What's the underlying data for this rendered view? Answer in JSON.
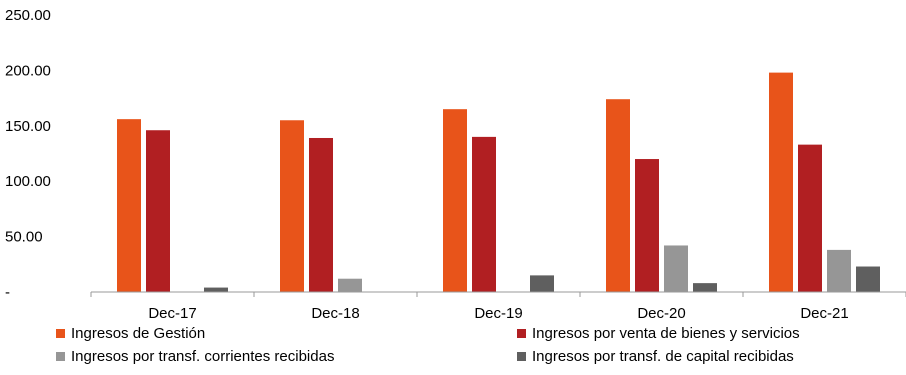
{
  "chart_data": {
    "type": "bar",
    "categories": [
      "Dec-17",
      "Dec-18",
      "Dec-19",
      "Dec-20",
      "Dec-21"
    ],
    "series": [
      {
        "name": "Ingresos de Gestión",
        "color": "#e8541a",
        "values": [
          156,
          155,
          165,
          174,
          198
        ]
      },
      {
        "name": "Ingresos por venta de bienes y servicios",
        "color": "#b11f22",
        "values": [
          146,
          139,
          140,
          120,
          133
        ]
      },
      {
        "name": "Ingresos por transf. corrientes recibidas",
        "color": "#969696",
        "values": [
          0,
          12,
          0,
          42,
          38
        ]
      },
      {
        "name": "Ingresos por transf. de capital recibidas",
        "color": "#5f5f5f",
        "values": [
          4,
          0,
          15,
          8,
          23
        ]
      }
    ],
    "y_ticks": [
      {
        "value": 0,
        "label": "-"
      },
      {
        "value": 50,
        "label": "50.00"
      },
      {
        "value": 100,
        "label": "100.00"
      },
      {
        "value": 150,
        "label": "150.00"
      },
      {
        "value": 200,
        "label": "200.00"
      },
      {
        "value": 250,
        "label": "250.00"
      }
    ],
    "ylim": [
      0,
      250
    ],
    "title": "",
    "xlabel": "",
    "ylabel": "",
    "grid": false,
    "legend_position": "bottom"
  }
}
